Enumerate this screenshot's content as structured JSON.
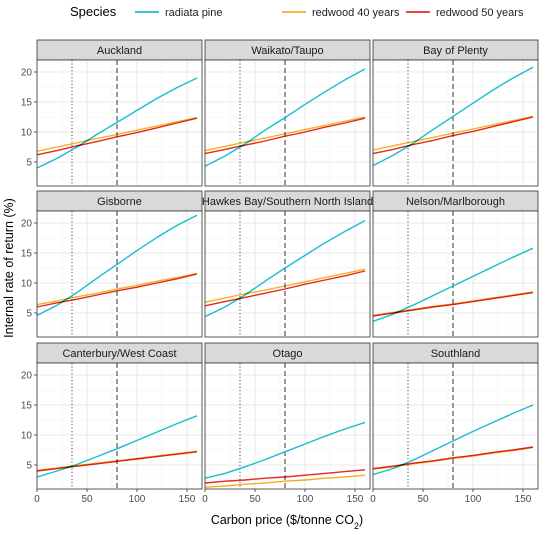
{
  "legend": {
    "title": "Species",
    "items": [
      {
        "name": "radiata pine",
        "color": "#17BECF"
      },
      {
        "name": "redwood 40 years",
        "color": "#F0B323"
      },
      {
        "name": "redwood 50 years",
        "color": "#E8281E"
      }
    ]
  },
  "axes": {
    "xlabel_main": "Carbon price ($/tonne CO",
    "xlabel_sub": "2",
    "xlabel_end": ")",
    "ylabel": "Internal rate of return (%)"
  },
  "chart_data": {
    "type": "line",
    "layout": "facet-grid-3x3",
    "xlabel": "Carbon price ($/tonne CO2)",
    "ylabel": "Internal rate of return (%)",
    "xlim": [
      0,
      165
    ],
    "ylim": [
      1,
      22
    ],
    "x_ticks": [
      0,
      50,
      100,
      150
    ],
    "y_ticks": [
      5,
      10,
      15,
      20
    ],
    "vlines": [
      {
        "x": 35,
        "style": "dotted"
      },
      {
        "x": 80,
        "style": "dashed"
      }
    ],
    "grid": true,
    "legend_position": "top",
    "x": [
      0,
      20,
      40,
      60,
      80,
      100,
      120,
      140,
      160
    ],
    "panels": [
      {
        "title": "Auckland",
        "series": [
          {
            "name": "radiata pine",
            "values": [
              4.0,
              5.6,
              7.5,
              9.6,
              11.6,
              13.6,
              15.6,
              17.4,
              19.0
            ]
          },
          {
            "name": "redwood 40 years",
            "values": [
              6.8,
              7.5,
              8.2,
              8.9,
              9.6,
              10.3,
              11.0,
              11.7,
              12.4
            ]
          },
          {
            "name": "redwood 50 years",
            "values": [
              6.2,
              6.9,
              7.7,
              8.4,
              9.2,
              9.9,
              10.7,
              11.5,
              12.3
            ]
          }
        ]
      },
      {
        "title": "Waikato/Taupo",
        "series": [
          {
            "name": "radiata pine",
            "values": [
              4.3,
              6.0,
              8.0,
              10.3,
              12.4,
              14.6,
              16.7,
              18.7,
              20.5
            ]
          },
          {
            "name": "redwood 40 years",
            "values": [
              6.9,
              7.6,
              8.3,
              9.0,
              9.7,
              10.4,
              11.1,
              11.8,
              12.5
            ]
          },
          {
            "name": "redwood 50 years",
            "values": [
              6.4,
              7.1,
              7.8,
              8.5,
              9.3,
              10.0,
              10.8,
              11.5,
              12.3
            ]
          }
        ]
      },
      {
        "title": "Bay of Plenty",
        "series": [
          {
            "name": "radiata pine",
            "values": [
              4.4,
              6.1,
              8.1,
              10.4,
              12.6,
              14.8,
              17.0,
              19.0,
              20.8
            ]
          },
          {
            "name": "redwood 40 years",
            "values": [
              7.0,
              7.7,
              8.4,
              9.1,
              9.8,
              10.5,
              11.2,
              11.9,
              12.6
            ]
          },
          {
            "name": "redwood 50 years",
            "values": [
              6.4,
              7.1,
              7.9,
              8.6,
              9.4,
              10.1,
              10.9,
              11.7,
              12.5
            ]
          }
        ]
      },
      {
        "title": "Gisborne",
        "series": [
          {
            "name": "radiata pine",
            "values": [
              4.6,
              6.3,
              8.4,
              10.8,
              13.1,
              15.4,
              17.6,
              19.6,
              21.3
            ]
          },
          {
            "name": "redwood 40 years",
            "values": [
              6.4,
              7.0,
              7.7,
              8.3,
              9.0,
              9.6,
              10.3,
              10.9,
              11.6
            ]
          },
          {
            "name": "redwood 50 years",
            "values": [
              6.0,
              6.7,
              7.3,
              8.0,
              8.7,
              9.3,
              10.0,
              10.7,
              11.5
            ]
          }
        ]
      },
      {
        "title": "Hawkes Bay/Southern North Island",
        "series": [
          {
            "name": "radiata pine",
            "values": [
              4.4,
              6.0,
              8.0,
              10.3,
              12.5,
              14.6,
              16.7,
              18.6,
              20.4
            ]
          },
          {
            "name": "redwood 40 years",
            "values": [
              6.8,
              7.5,
              8.2,
              8.8,
              9.5,
              10.2,
              10.9,
              11.6,
              12.3
            ]
          },
          {
            "name": "redwood 50 years",
            "values": [
              6.2,
              6.9,
              7.6,
              8.3,
              9.0,
              9.8,
              10.5,
              11.2,
              12.0
            ]
          }
        ]
      },
      {
        "title": "Nelson/Marlborough",
        "series": [
          {
            "name": "radiata pine",
            "values": [
              3.6,
              4.8,
              6.3,
              7.9,
              9.5,
              11.1,
              12.7,
              14.3,
              15.8
            ]
          },
          {
            "name": "redwood 40 years",
            "values": [
              4.6,
              5.1,
              5.6,
              6.1,
              6.5,
              7.0,
              7.5,
              8.0,
              8.5
            ]
          },
          {
            "name": "redwood 50 years",
            "values": [
              4.5,
              5.0,
              5.5,
              6.0,
              6.4,
              6.9,
              7.4,
              7.9,
              8.4
            ]
          }
        ]
      },
      {
        "title": "Canterbury/West Coast",
        "series": [
          {
            "name": "radiata pine",
            "values": [
              3.0,
              4.0,
              5.1,
              6.4,
              7.7,
              9.1,
              10.5,
              11.9,
              13.2
            ]
          },
          {
            "name": "redwood 40 years",
            "values": [
              4.1,
              4.5,
              4.9,
              5.3,
              5.7,
              6.1,
              6.5,
              6.9,
              7.3
            ]
          },
          {
            "name": "redwood 50 years",
            "values": [
              4.0,
              4.4,
              4.8,
              5.2,
              5.6,
              6.0,
              6.4,
              6.8,
              7.2
            ]
          }
        ]
      },
      {
        "title": "Otago",
        "series": [
          {
            "name": "radiata pine",
            "values": [
              2.8,
              3.6,
              4.7,
              5.9,
              7.2,
              8.5,
              9.8,
              11.0,
              12.1
            ]
          },
          {
            "name": "redwood 40 years",
            "values": [
              1.3,
              1.5,
              1.8,
              2.0,
              2.3,
              2.5,
              2.8,
              3.0,
              3.3
            ]
          },
          {
            "name": "redwood 50 years",
            "values": [
              2.0,
              2.3,
              2.5,
              2.8,
              3.0,
              3.3,
              3.6,
              3.9,
              4.2
            ]
          }
        ]
      },
      {
        "title": "Southland",
        "series": [
          {
            "name": "radiata pine",
            "values": [
              3.4,
              4.4,
              5.8,
              7.4,
              9.0,
              10.6,
              12.1,
              13.6,
              15.0
            ]
          },
          {
            "name": "redwood 40 years",
            "values": [
              4.3,
              4.7,
              5.2,
              5.6,
              6.1,
              6.5,
              7.0,
              7.4,
              7.9
            ]
          },
          {
            "name": "redwood 50 years",
            "values": [
              4.4,
              4.8,
              5.3,
              5.7,
              6.2,
              6.6,
              7.1,
              7.5,
              8.0
            ]
          }
        ]
      }
    ]
  }
}
